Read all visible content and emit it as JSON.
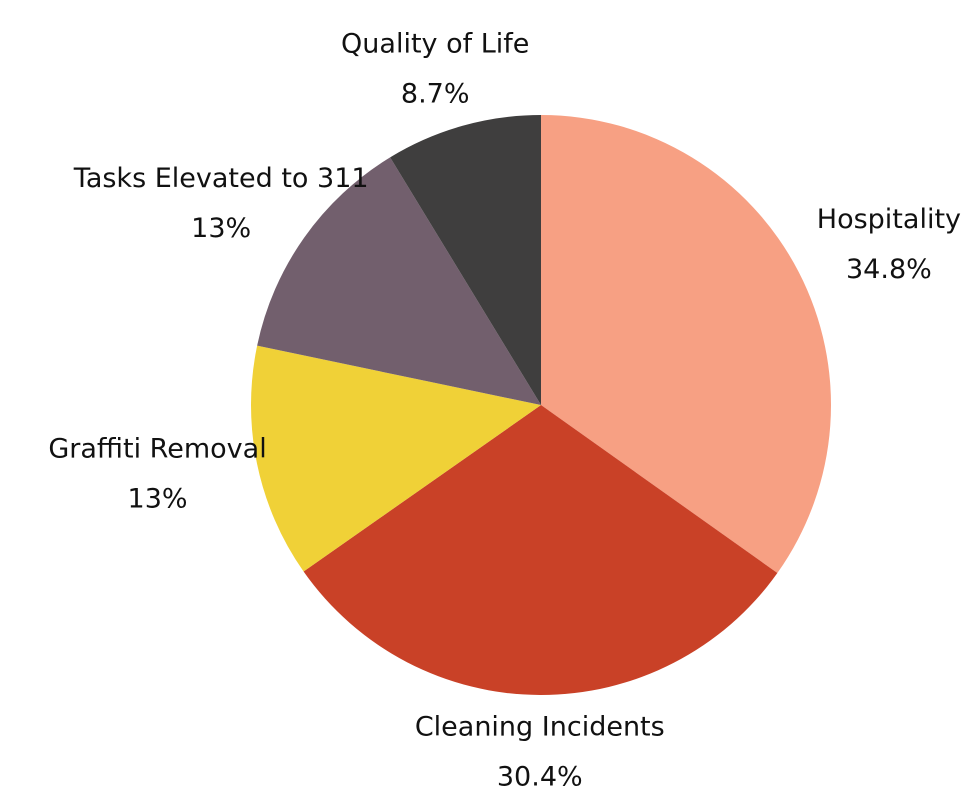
{
  "chart_data": {
    "type": "pie",
    "categories": [
      "Hospitality",
      "Cleaning Incidents",
      "Graffiti Removal",
      "Tasks Elevated to 311",
      "Quality of Life"
    ],
    "values": [
      34.8,
      30.4,
      13,
      13,
      8.7
    ],
    "value_labels": [
      "34.8%",
      "30.4%",
      "13%",
      "13%",
      "8.7%"
    ],
    "colors": [
      "#f7a083",
      "#c94127",
      "#f0d137",
      "#725f6d",
      "#3f3e3e"
    ]
  }
}
